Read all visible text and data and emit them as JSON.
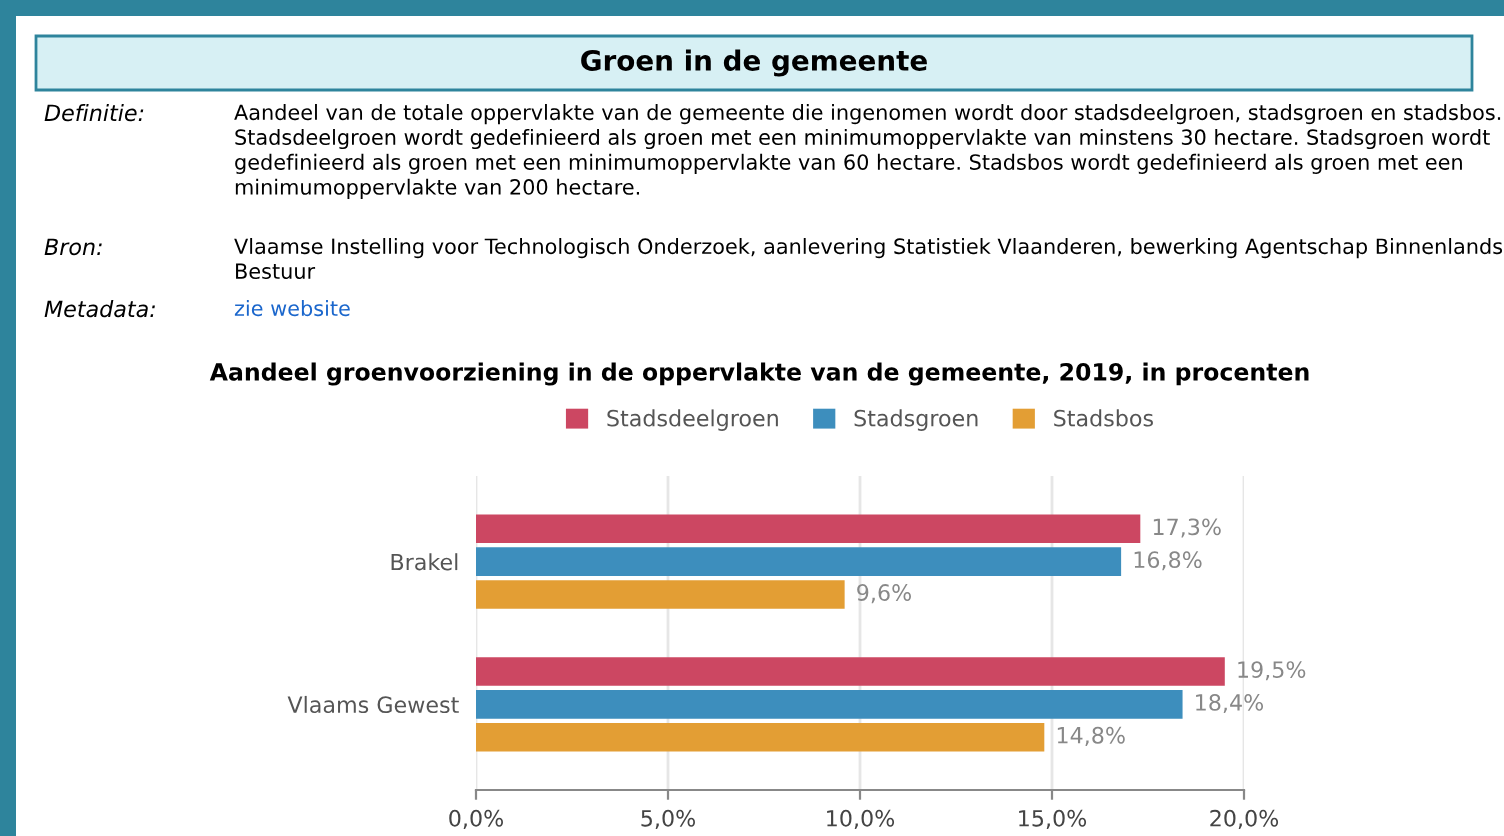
{
  "chart_data": {
    "type": "bar",
    "orientation": "horizontal",
    "title": "Groen in de gemeente",
    "subtitle": "Aandeel groenvoorziening in de oppervlakte van de gemeente, 2019, in procenten",
    "annotations": [
      "Definitie:",
      "Aandeel van de totale oppervlakte van de gemeente die ingenomen wordt door stadsdeelgroen, stadsgroen en stadsbos. Stadsdeelgroen wordt gedefinieerd als groen met een minimumoppervlakte van minstens 30 hectare. Stadsgroen wordt gedefinieerd als groen met een minimumoppervlakte van 60 hectare. Stadsbos wordt gedefinieerd als groen met een minimumoppervlakte van 200 hectare.",
      "Bron:",
      "Vlaamse Instelling voor Technologisch Onderzoek, aanlevering Statistiek Vlaanderen, bewerking Agentschap Binnenlands Bestuur",
      "Metadata:",
      "zie website"
    ],
    "categories": [
      "Brakel",
      "Vlaams Gewest"
    ],
    "series": [
      {
        "name": "Stadsdeelgroen",
        "color": "#cc4762",
        "values": [
          17.3,
          19.5
        ],
        "value_labels": [
          "17,3%",
          "19,5%"
        ]
      },
      {
        "name": "Stadsgroen",
        "color": "#3d8ebd",
        "values": [
          16.8,
          18.4
        ],
        "value_labels": [
          "16,8%",
          "18,4%"
        ]
      },
      {
        "name": "Stadsbos",
        "color": "#e39e34",
        "values": [
          9.6,
          14.8
        ],
        "value_labels": [
          "9,6%",
          "14,8%"
        ]
      }
    ],
    "xlim": [
      0,
      20
    ],
    "xticks": [
      {
        "value": 0,
        "label": "0,0%"
      },
      {
        "value": 5,
        "label": "5,0%"
      },
      {
        "value": 10,
        "label": "10,0%"
      },
      {
        "value": 15,
        "label": "15,0%"
      },
      {
        "value": 20,
        "label": "20,0%"
      }
    ],
    "grid": "x",
    "legend": "top"
  }
}
